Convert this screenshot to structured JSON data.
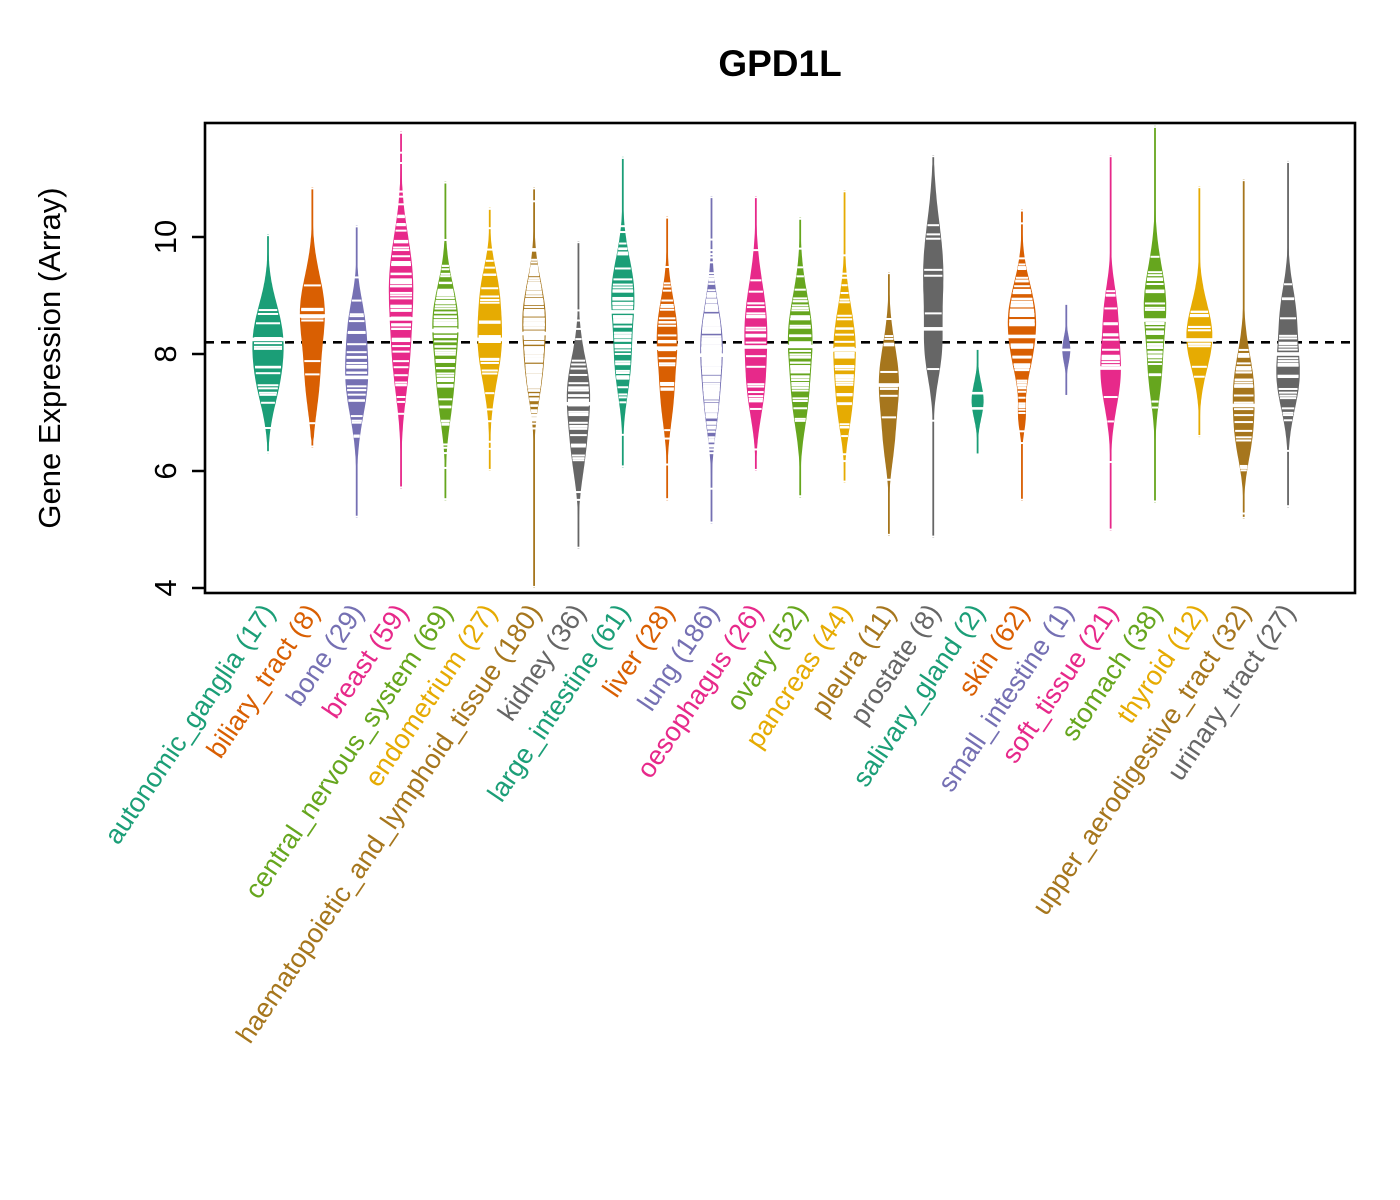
{
  "title": "GPD1L",
  "y_axis": {
    "label": "Gene Expression (Array)",
    "ticks": [
      4,
      6,
      8,
      10
    ]
  },
  "chart_data": {
    "type": "violin",
    "title": "GPD1L",
    "xlabel": "",
    "ylabel": "Gene Expression (Array)",
    "ylim": [
      3.9,
      11.95
    ],
    "yticks": [
      4,
      6,
      8,
      10
    ],
    "grid": false,
    "legend": "none",
    "overall_mean_line": {
      "value": 8.2,
      "style": "dashed",
      "color": "#000000"
    },
    "tick_mark_color": "#FFFFFF",
    "palette": [
      "#1B9E77",
      "#D95F02",
      "#7570B3",
      "#E7298A",
      "#66A61E",
      "#E6AB02",
      "#A6761D",
      "#666666"
    ],
    "groups": [
      {
        "label": "autonomic_ganglia",
        "n": 17,
        "color": "#1B9E77",
        "min": 6.3,
        "max": 10.05,
        "median": 8.25,
        "bumps": [
          {
            "c": 8.35,
            "s": 0.55,
            "w": 13
          },
          {
            "c": 7.5,
            "s": 0.5,
            "w": 8
          }
        ]
      },
      {
        "label": "biliary_tract",
        "n": 8,
        "color": "#D95F02",
        "min": 6.4,
        "max": 10.85,
        "median": 8.65,
        "bumps": [
          {
            "c": 8.75,
            "s": 0.6,
            "w": 12
          },
          {
            "c": 7.5,
            "s": 0.55,
            "w": 6
          }
        ]
      },
      {
        "label": "bone",
        "n": 29,
        "color": "#7570B3",
        "min": 5.2,
        "max": 10.2,
        "median": 7.6,
        "bumps": [
          {
            "c": 7.6,
            "s": 0.65,
            "w": 11
          },
          {
            "c": 8.6,
            "s": 0.45,
            "w": 5
          }
        ]
      },
      {
        "label": "breast",
        "n": 59,
        "color": "#E7298A",
        "min": 5.7,
        "max": 11.8,
        "median": 8.6,
        "bumps": [
          {
            "c": 9.3,
            "s": 0.75,
            "w": 11
          },
          {
            "c": 7.9,
            "s": 0.7,
            "w": 7
          }
        ]
      },
      {
        "label": "central_nervous_system",
        "n": 69,
        "color": "#66A61E",
        "min": 5.5,
        "max": 10.95,
        "median": 8.4,
        "bumps": [
          {
            "c": 8.6,
            "s": 0.6,
            "w": 12
          },
          {
            "c": 7.4,
            "s": 0.6,
            "w": 7
          }
        ]
      },
      {
        "label": "endometrium",
        "n": 27,
        "color": "#E6AB02",
        "min": 6.0,
        "max": 10.5,
        "median": 8.25,
        "bumps": [
          {
            "c": 8.25,
            "s": 0.7,
            "w": 12
          },
          {
            "c": 9.2,
            "s": 0.4,
            "w": 4
          }
        ]
      },
      {
        "label": "haematopoietic_and_lymphoid_tissue",
        "n": 180,
        "color": "#A6761D",
        "min": 4.0,
        "max": 10.85,
        "median": 8.35,
        "bumps": [
          {
            "c": 8.65,
            "s": 0.6,
            "w": 11
          },
          {
            "c": 7.6,
            "s": 0.5,
            "w": 6
          }
        ]
      },
      {
        "label": "kidney",
        "n": 36,
        "color": "#666666",
        "min": 4.67,
        "max": 9.93,
        "median": 7.15,
        "bumps": [
          {
            "c": 7.35,
            "s": 0.6,
            "w": 11
          },
          {
            "c": 6.3,
            "s": 0.5,
            "w": 5
          }
        ]
      },
      {
        "label": "large_intestine",
        "n": 61,
        "color": "#1B9E77",
        "min": 6.06,
        "max": 11.37,
        "median": 8.72,
        "bumps": [
          {
            "c": 9.05,
            "s": 0.6,
            "w": 11
          },
          {
            "c": 7.8,
            "s": 0.55,
            "w": 7
          }
        ]
      },
      {
        "label": "liver",
        "n": 28,
        "color": "#D95F02",
        "min": 5.5,
        "max": 10.35,
        "median": 8.1,
        "bumps": [
          {
            "c": 8.35,
            "s": 0.6,
            "w": 10
          },
          {
            "c": 7.2,
            "s": 0.5,
            "w": 5
          }
        ]
      },
      {
        "label": "lung",
        "n": 186,
        "color": "#7570B3",
        "min": 5.1,
        "max": 10.7,
        "median": 7.98,
        "bumps": [
          {
            "c": 8.15,
            "s": 0.7,
            "w": 11
          },
          {
            "c": 7.0,
            "s": 0.5,
            "w": 4
          }
        ]
      },
      {
        "label": "oesophagus",
        "n": 26,
        "color": "#E7298A",
        "min": 6.0,
        "max": 10.7,
        "median": 8.12,
        "bumps": [
          {
            "c": 8.45,
            "s": 0.75,
            "w": 11
          },
          {
            "c": 7.3,
            "s": 0.5,
            "w": 5
          }
        ]
      },
      {
        "label": "ovary",
        "n": 52,
        "color": "#66A61E",
        "min": 5.55,
        "max": 10.33,
        "median": 8.13,
        "bumps": [
          {
            "c": 8.3,
            "s": 0.7,
            "w": 12
          },
          {
            "c": 7.1,
            "s": 0.5,
            "w": 5
          }
        ]
      },
      {
        "label": "pancreas",
        "n": 44,
        "color": "#E6AB02",
        "min": 5.8,
        "max": 10.8,
        "median": 8.07,
        "bumps": [
          {
            "c": 8.1,
            "s": 0.7,
            "w": 11
          },
          {
            "c": 7.0,
            "s": 0.45,
            "w": 4
          }
        ]
      },
      {
        "label": "pleura",
        "n": 11,
        "color": "#A6761D",
        "min": 4.89,
        "max": 9.4,
        "median": 7.47,
        "bumps": [
          {
            "c": 7.5,
            "s": 0.65,
            "w": 10
          },
          {
            "c": 6.4,
            "s": 0.4,
            "w": 3
          }
        ]
      },
      {
        "label": "prostate",
        "n": 8,
        "color": "#666666",
        "min": 4.86,
        "max": 11.4,
        "median": 8.43,
        "bumps": [
          {
            "c": 9.4,
            "s": 0.85,
            "w": 10
          },
          {
            "c": 8.0,
            "s": 0.5,
            "w": 6
          }
        ]
      },
      {
        "label": "salivary_gland",
        "n": 2,
        "color": "#1B9E77",
        "min": 6.3,
        "max": 8.07,
        "median": 7.2,
        "bumps": [
          {
            "c": 7.2,
            "s": 0.3,
            "w": 6
          }
        ],
        "points": [
          7.33,
          7.07
        ]
      },
      {
        "label": "skin",
        "n": 62,
        "color": "#D95F02",
        "min": 5.49,
        "max": 10.47,
        "median": 8.3,
        "bumps": [
          {
            "c": 8.7,
            "s": 0.55,
            "w": 12
          },
          {
            "c": 7.9,
            "s": 0.5,
            "w": 6
          },
          {
            "c": 6.9,
            "s": 0.25,
            "w": 3
          }
        ]
      },
      {
        "label": "small_intestine",
        "n": 1,
        "color": "#7570B3",
        "min": 7.3,
        "max": 8.84,
        "median": 8.07,
        "bumps": [
          {
            "c": 8.07,
            "s": 0.22,
            "w": 4
          }
        ],
        "points": [
          8.07
        ]
      },
      {
        "label": "soft_tissue",
        "n": 21,
        "color": "#E7298A",
        "min": 4.98,
        "max": 11.4,
        "median": 7.76,
        "bumps": [
          {
            "c": 7.7,
            "s": 0.6,
            "w": 10
          },
          {
            "c": 8.8,
            "s": 0.45,
            "w": 5
          }
        ]
      },
      {
        "label": "stomach",
        "n": 38,
        "color": "#66A61E",
        "min": 5.46,
        "max": 11.9,
        "median": 8.58,
        "bumps": [
          {
            "c": 8.85,
            "s": 0.65,
            "w": 11
          },
          {
            "c": 7.6,
            "s": 0.5,
            "w": 5
          }
        ]
      },
      {
        "label": "thyroid",
        "n": 12,
        "color": "#E6AB02",
        "min": 6.58,
        "max": 10.87,
        "median": 8.24,
        "bumps": [
          {
            "c": 8.3,
            "s": 0.55,
            "w": 13
          }
        ]
      },
      {
        "label": "upper_aerodigestive_tract",
        "n": 32,
        "color": "#A6761D",
        "min": 5.18,
        "max": 10.99,
        "median": 7.12,
        "bumps": [
          {
            "c": 7.4,
            "s": 0.6,
            "w": 10
          },
          {
            "c": 6.5,
            "s": 0.45,
            "w": 5
          }
        ]
      },
      {
        "label": "urinary_tract",
        "n": 27,
        "color": "#666666",
        "min": 5.38,
        "max": 11.3,
        "median": 8.0,
        "bumps": [
          {
            "c": 7.6,
            "s": 0.55,
            "w": 11
          },
          {
            "c": 8.7,
            "s": 0.5,
            "w": 7
          }
        ]
      }
    ]
  }
}
